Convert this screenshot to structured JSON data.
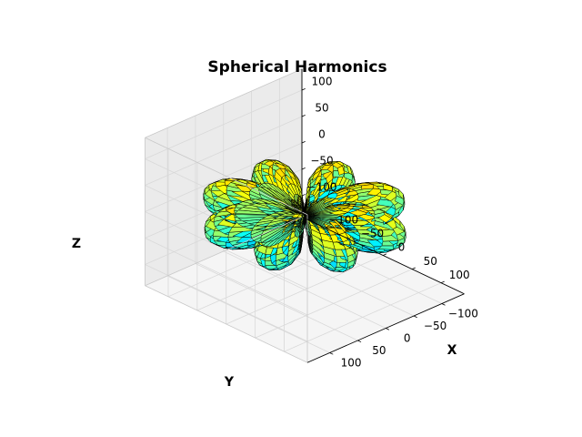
{
  "chart_data": {
    "type": "surface",
    "title": "Spherical Harmonics",
    "xlabel": "X",
    "ylabel": "Y",
    "zlabel": "Z",
    "xlim": [
      -140,
      140
    ],
    "ylim": [
      -140,
      140
    ],
    "zlim": [
      -140,
      140
    ],
    "x_ticks": [
      {
        "value": -100,
        "label": "−100"
      },
      {
        "value": -50,
        "label": "−50"
      },
      {
        "value": 0,
        "label": "0"
      },
      {
        "value": 50,
        "label": "50"
      },
      {
        "value": 100,
        "label": "100"
      }
    ],
    "y_ticks": [
      {
        "value": -100,
        "label": "−100"
      },
      {
        "value": -50,
        "label": "−50"
      },
      {
        "value": 0,
        "label": "0"
      },
      {
        "value": 50,
        "label": "50"
      },
      {
        "value": 100,
        "label": "100"
      }
    ],
    "z_ticks": [
      {
        "value": -100,
        "label": "−100"
      },
      {
        "value": -50,
        "label": "−50"
      },
      {
        "value": 0,
        "label": "0"
      },
      {
        "value": 50,
        "label": "50"
      },
      {
        "value": 100,
        "label": "100"
      }
    ],
    "grid": true,
    "colormap": "jet",
    "edge_color": "#000000",
    "pane_color": "#f2f2f2",
    "grid_color": "#d9d9d9",
    "view": {
      "elev": 25,
      "azim": -60
    }
  }
}
